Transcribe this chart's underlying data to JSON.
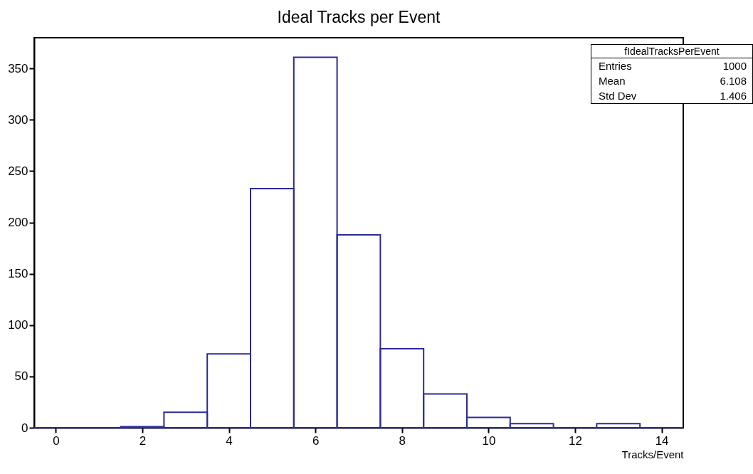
{
  "chart_data": {
    "type": "histogram",
    "title": "Ideal Tracks per Event",
    "xlabel": "Tracks/Event",
    "bins": [
      -0.5,
      0.5,
      1.5,
      2.5,
      3.5,
      4.5,
      5.5,
      6.5,
      7.5,
      8.5,
      9.5,
      10.5,
      11.5,
      12.5,
      13.5,
      14.5
    ],
    "values": [
      0,
      0,
      1,
      15,
      72,
      233,
      361,
      188,
      77,
      33,
      10,
      4,
      0,
      4,
      0
    ],
    "color": "#2b2b99",
    "xlim": [
      -0.5,
      14.5
    ],
    "xticks": [
      0,
      2,
      4,
      6,
      8,
      10,
      12,
      14
    ],
    "ylim": [
      0,
      380
    ],
    "yticks": [
      0,
      50,
      100,
      150,
      200,
      250,
      300,
      350
    ],
    "grid": false,
    "annotations": [
      "fIdealTracksPerEvent",
      "Entries",
      "1000",
      "Mean",
      "6.108",
      "Std Dev",
      "1.406"
    ]
  }
}
